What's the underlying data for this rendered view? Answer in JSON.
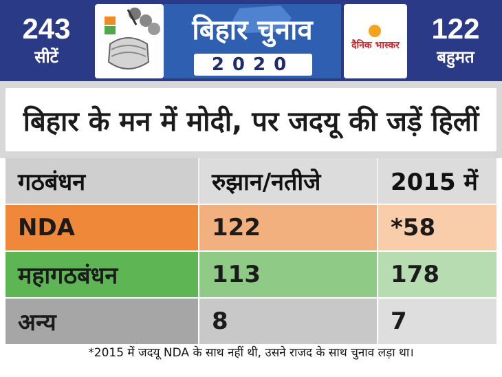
{
  "header": {
    "seats_total": "243",
    "seats_label": "सीटें",
    "majority_total": "122",
    "majority_label": "बहुमत",
    "logo_title": "बिहार चुनाव",
    "logo_year": "2020",
    "publisher": "दैनिक भास्कर"
  },
  "title": "बिहार के मन में मोदी, पर जदयू की जड़ें हिलीं",
  "table": {
    "columns": [
      "गठबंधन",
      "रुझान/नतीजे",
      "2015 में"
    ],
    "rows": [
      {
        "name": "NDA",
        "current": "122",
        "prev": "*58",
        "colors": [
          "#f0883a",
          "#f3b07f",
          "#f9ccaa"
        ]
      },
      {
        "name": "महागठबंधन",
        "current": "113",
        "prev": "178",
        "colors": [
          "#5db553",
          "#8fca87",
          "#b8dcb1"
        ]
      },
      {
        "name": "अन्य",
        "current": "8",
        "prev": "7",
        "colors": [
          "#a6a6a6",
          "#c8c8c8",
          "#dedede"
        ]
      }
    ]
  },
  "footnote": "*2015 में जदयू NDA के साथ नहीं थी, उसने राजद के साथ चुनाव लड़ा था।",
  "colors": {
    "header_bg": "#2b3a87",
    "logo_bg": "#2f5fb0"
  }
}
